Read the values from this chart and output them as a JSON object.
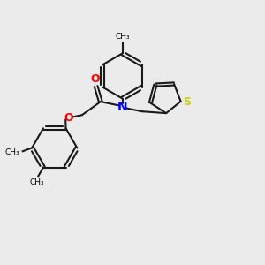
{
  "bg_color": "#ebebeb",
  "atom_colors": {
    "N": "#0000ff",
    "O": "#ff0000",
    "S": "#cccc00"
  },
  "bond_color": "#1a1a1a",
  "bond_width": 1.5,
  "font_size_atom": 9,
  "xlim": [
    0,
    10
  ],
  "ylim": [
    0,
    10
  ]
}
